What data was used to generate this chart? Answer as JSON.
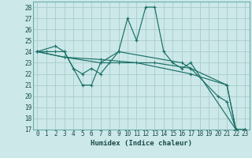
{
  "xlabel": "Humidex (Indice chaleur)",
  "bg_color": "#cce8e8",
  "grid_color": "#aacccc",
  "line_color": "#1a7068",
  "xlim": [
    -0.5,
    23.5
  ],
  "ylim": [
    17,
    28.5
  ],
  "yticks": [
    17,
    18,
    19,
    20,
    21,
    22,
    23,
    24,
    25,
    26,
    27,
    28
  ],
  "xticks": [
    0,
    1,
    2,
    3,
    4,
    5,
    6,
    7,
    8,
    9,
    10,
    11,
    12,
    13,
    14,
    15,
    16,
    17,
    18,
    19,
    20,
    21,
    22,
    23
  ],
  "lines": [
    {
      "x": [
        0,
        2,
        3,
        5,
        6,
        7,
        9,
        10,
        11,
        12,
        13,
        14,
        15,
        16,
        17,
        22,
        23
      ],
      "y": [
        24,
        24.5,
        24,
        21,
        21,
        23,
        24,
        27,
        25,
        28,
        28,
        24,
        23,
        22.5,
        23,
        17,
        17
      ]
    },
    {
      "x": [
        0,
        3,
        7,
        9,
        13,
        17,
        21,
        22,
        23
      ],
      "y": [
        24,
        23.5,
        23,
        23,
        23,
        22.5,
        21,
        17,
        17
      ]
    },
    {
      "x": [
        0,
        3,
        7,
        11,
        17,
        21,
        22,
        23
      ],
      "y": [
        24,
        23.5,
        23.3,
        23,
        22,
        21,
        17,
        17
      ]
    },
    {
      "x": [
        0,
        1,
        2,
        3,
        4,
        5,
        6,
        7,
        8,
        9,
        16,
        17,
        20,
        21,
        22,
        23
      ],
      "y": [
        24,
        24,
        24,
        24,
        22.5,
        22,
        22.5,
        22,
        23,
        24,
        23,
        22.5,
        20,
        19.5,
        17,
        17
      ]
    }
  ]
}
